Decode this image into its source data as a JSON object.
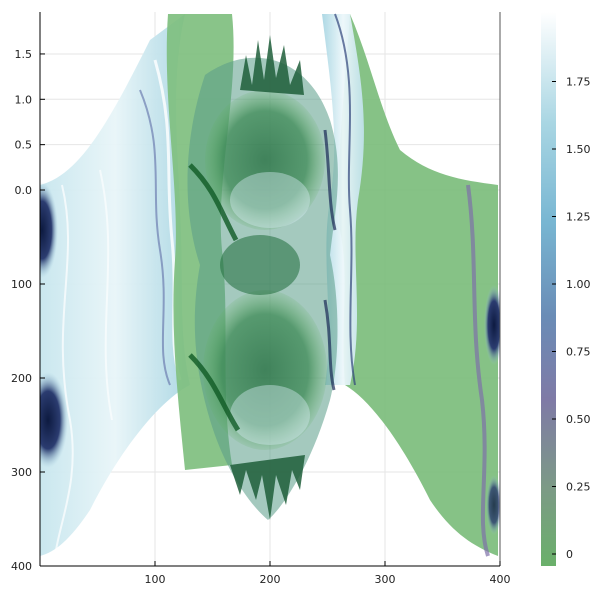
{
  "chart_data": {
    "type": "heatmap",
    "title": "",
    "xlabel": "",
    "ylabel": "",
    "xlim": [
      0,
      400
    ],
    "x_ticks": [
      100,
      200,
      300,
      400
    ],
    "x_tick_labels": [
      "100",
      "200",
      "300",
      "400"
    ],
    "y_ticks_upper": [
      1.5,
      1.0,
      0.5,
      0.0
    ],
    "y_tick_labels_upper": [
      "1.5",
      "1.0",
      "0.5",
      "0.0"
    ],
    "y_ticks_lower": [
      100,
      200,
      300,
      400
    ],
    "y_tick_labels_lower": [
      "100",
      "200",
      "300",
      "400"
    ],
    "colorbar": {
      "range": [
        0,
        2
      ],
      "ticks": [
        0,
        0.25,
        0.5,
        0.75,
        1.0,
        1.25,
        1.5,
        1.75
      ],
      "tick_labels": [
        "0",
        "0.25",
        "0.50",
        "0.75",
        "1.00",
        "1.25",
        "1.50",
        "1.75"
      ],
      "colormap": [
        "#6ab06a",
        "#7c9a86",
        "#7f7aa6",
        "#6a8cb6",
        "#78b6d2",
        "#a9d6e3",
        "#ffffff"
      ]
    },
    "grid": true,
    "legend": "none",
    "description_colors": {
      "surface_green": "#5fae5f",
      "surface_light": "#b9dfe9",
      "dark_navy": "#0d1a40",
      "dark_green": "#1f6b3a"
    }
  }
}
